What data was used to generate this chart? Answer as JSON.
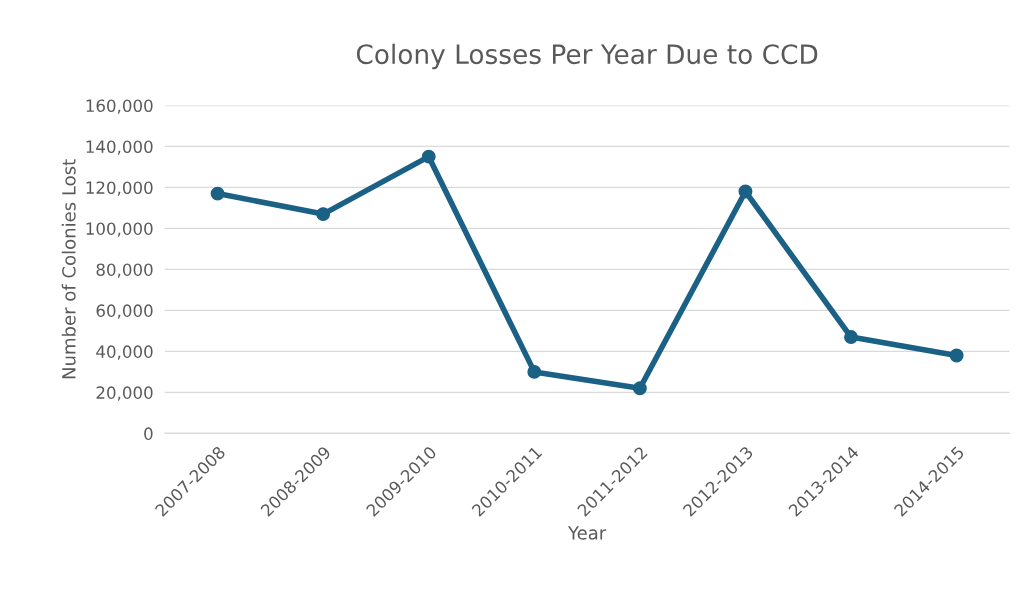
{
  "chart_data": {
    "type": "line",
    "title": "Colony Losses Per Year Due to CCD",
    "xlabel": "Year",
    "ylabel": "Number of Colonies Lost",
    "categories": [
      "2007-2008",
      "2008-2009",
      "2009-2010",
      "2010-2011",
      "2011-2012",
      "2012-2013",
      "2013-2014",
      "2014-2015"
    ],
    "series": [
      {
        "color": "#1b6185",
        "values": [
          117000,
          107000,
          135000,
          30000,
          22000,
          118000,
          47000,
          38000
        ]
      }
    ],
    "ylim": [
      0,
      160000
    ],
    "yticks": [
      {
        "value": 0,
        "label": "0"
      },
      {
        "value": 20000,
        "label": "20,000"
      },
      {
        "value": 40000,
        "label": "40,000"
      },
      {
        "value": 60000,
        "label": "60,000"
      },
      {
        "value": 80000,
        "label": "80,000"
      },
      {
        "value": 100000,
        "label": "100,000"
      },
      {
        "value": 120000,
        "label": "120,000"
      },
      {
        "value": 140000,
        "label": "140,000"
      },
      {
        "value": 160000,
        "label": "160,000"
      }
    ],
    "grid": "y",
    "marker": "circle",
    "line_style": "solid"
  }
}
